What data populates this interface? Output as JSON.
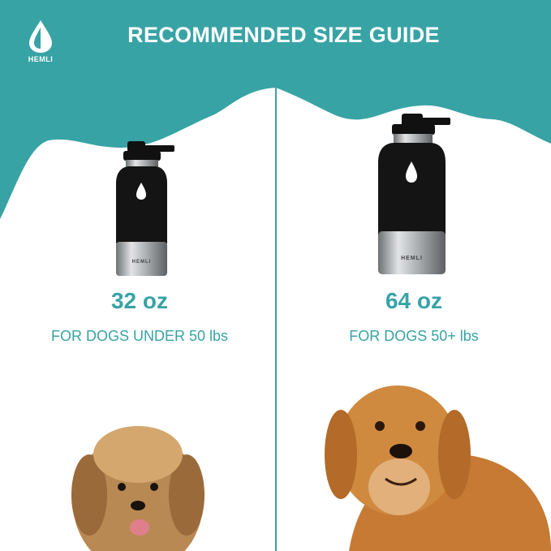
{
  "header": {
    "title": "RECOMMENDED SIZE GUIDE",
    "brand": "HEMLI",
    "logo_icon": "water-drop-icon"
  },
  "colors": {
    "accent": "#38a3a5",
    "bottle_body": "#141414",
    "steel": "#b9bcbf"
  },
  "options": [
    {
      "size": "32 oz",
      "description": "FOR DOGS UNDER 50 lbs",
      "bottle_label": "HEMLI"
    },
    {
      "size": "64 oz",
      "description": "FOR DOGS 50+ lbs",
      "bottle_label": "HEMLI"
    }
  ]
}
